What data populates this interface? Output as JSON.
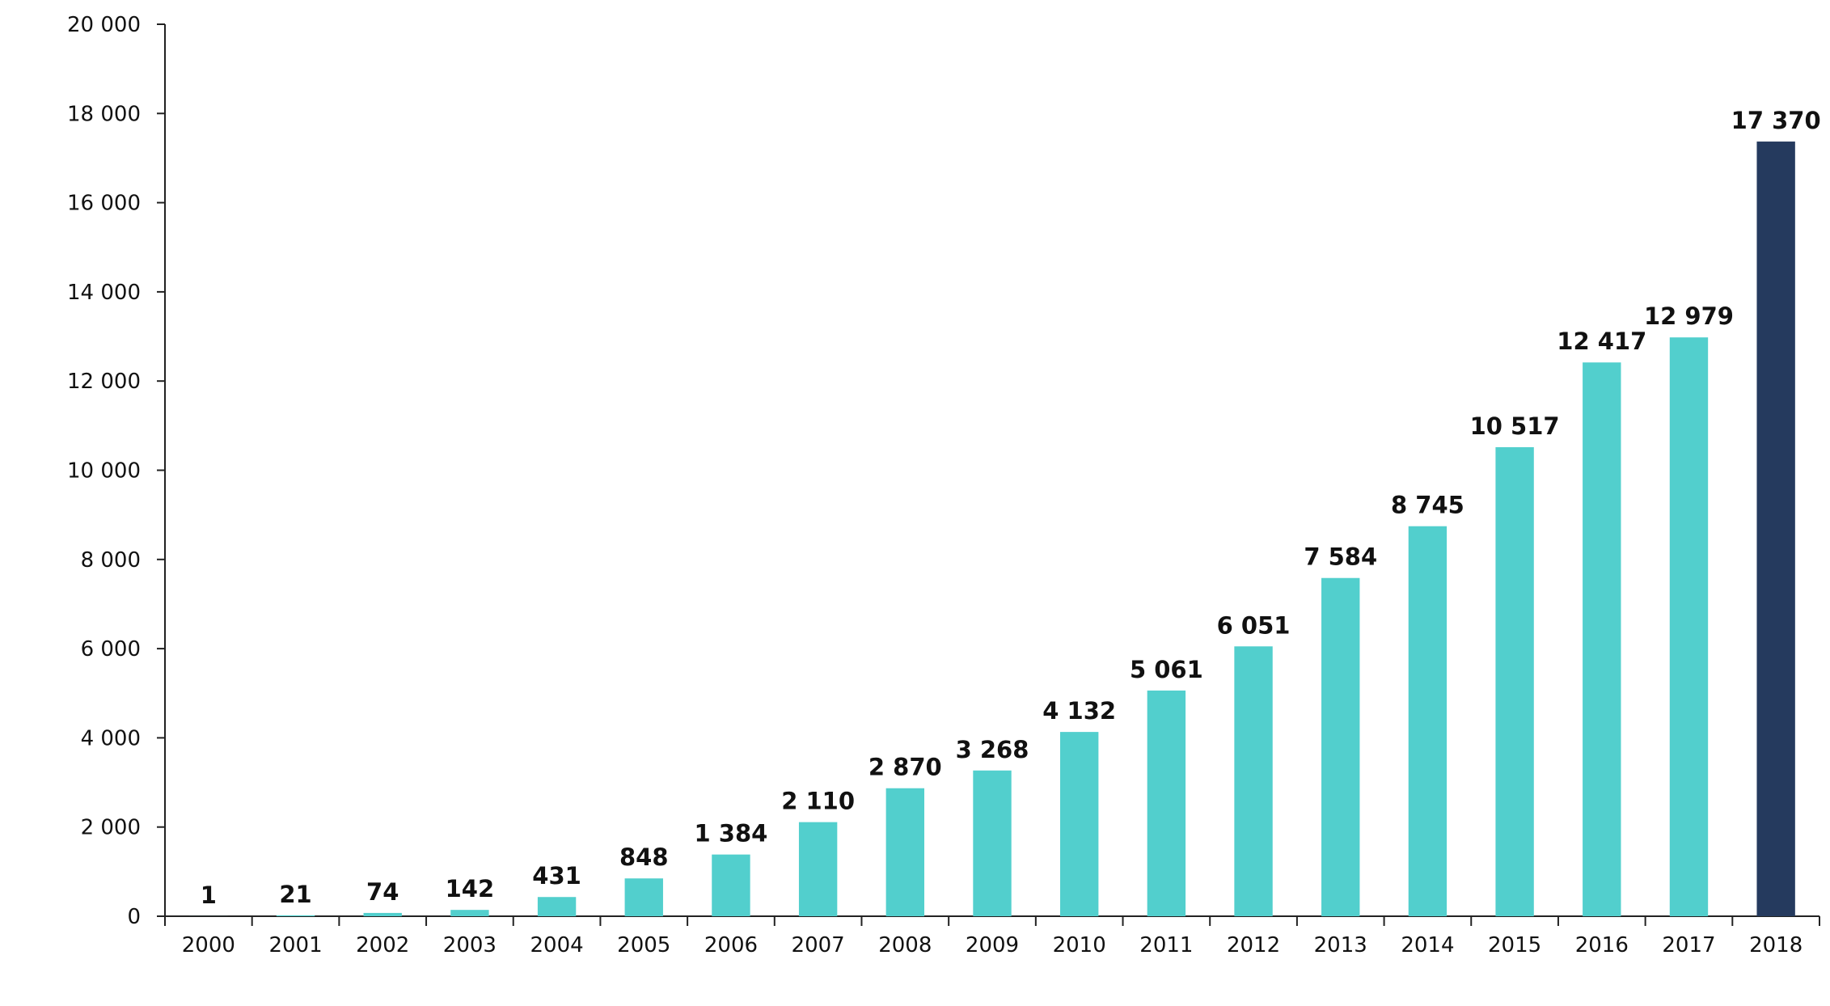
{
  "chart_data": {
    "type": "bar",
    "title": "",
    "xlabel": "",
    "ylabel": "",
    "categories": [
      "2000",
      "2001",
      "2002",
      "2003",
      "2004",
      "2005",
      "2006",
      "2007",
      "2008",
      "2009",
      "2010",
      "2011",
      "2012",
      "2013",
      "2014",
      "2015",
      "2016",
      "2017",
      "2018"
    ],
    "values": [
      1,
      21,
      74,
      142,
      431,
      848,
      1384,
      2110,
      2870,
      3268,
      4132,
      5061,
      6051,
      7584,
      8745,
      10517,
      12417,
      12979,
      17370
    ],
    "value_labels": [
      "1",
      "21",
      "74",
      "142",
      "431",
      "848",
      "1 384",
      "2 110",
      "2 870",
      "3 268",
      "4 132",
      "5 061",
      "6 051",
      "7 584",
      "8 745",
      "10 517",
      "12 417",
      "12 979",
      "17 370"
    ],
    "ylim": [
      0,
      20000
    ],
    "y_ticks": [
      0,
      2000,
      4000,
      6000,
      8000,
      10000,
      12000,
      14000,
      16000,
      18000,
      20000
    ],
    "y_tick_labels": [
      "0",
      "2 000",
      "4 000",
      "6 000",
      "8 000",
      "10 000",
      "12 000",
      "14 000",
      "16 000",
      "18 000",
      "20 000"
    ],
    "grid": false,
    "legend": "none",
    "colors": {
      "bar": "#52CFCD",
      "highlight_bar": "#253A5E",
      "axis": "#222222",
      "text": "#111111"
    },
    "highlight_category": "2018"
  }
}
